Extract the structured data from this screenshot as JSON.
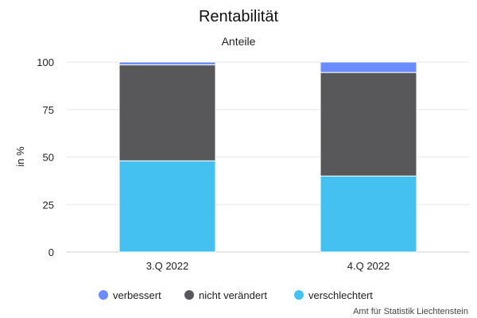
{
  "chart_data": {
    "type": "bar",
    "stacked": true,
    "title": "Rentabilität",
    "subtitle": "Anteile",
    "xlabel": "",
    "ylabel": "in %",
    "ylim": [
      0,
      100
    ],
    "yticks": [
      "0",
      "25",
      "50",
      "75",
      "100"
    ],
    "ytick_values": [
      0,
      25,
      50,
      75,
      100
    ],
    "grid": true,
    "legend_position": "bottom",
    "categories": [
      "3.Q 2022",
      "4.Q 2022"
    ],
    "series": [
      {
        "name": "verbessert",
        "color": "#6b8cff",
        "values": [
          1.5,
          5.5
        ]
      },
      {
        "name": "nicht verändert",
        "color": "#58585a",
        "values": [
          50.5,
          54.5
        ]
      },
      {
        "name": "verschlechtert",
        "color": "#44c1f0",
        "values": [
          48,
          40
        ]
      }
    ],
    "credit": "Amt für Statistik Liechtenstein"
  }
}
